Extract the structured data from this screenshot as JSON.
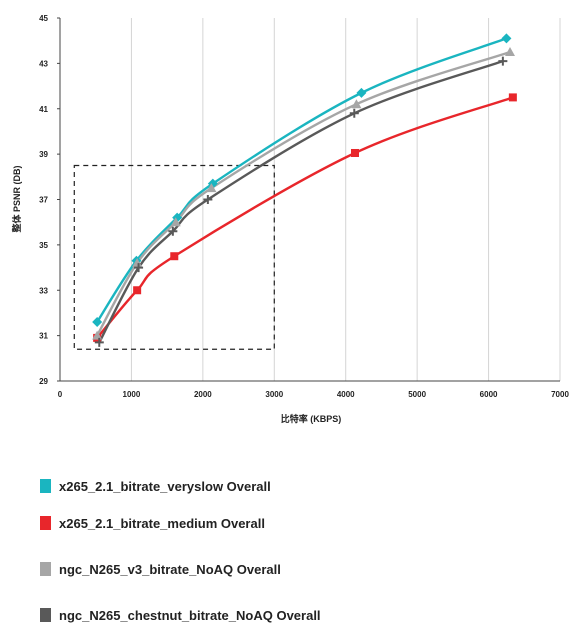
{
  "chart_data": {
    "type": "line",
    "title": "",
    "xlabel": "比特率 (KBPS)",
    "ylabel": "整体 PSNR (DB)",
    "xlim": [
      0,
      7000
    ],
    "ylim": [
      29,
      45
    ],
    "x_ticks": [
      "0",
      "1000",
      "2000",
      "3000",
      "4000",
      "5000",
      "6000",
      "7000"
    ],
    "y_ticks": [
      "29",
      "31",
      "33",
      "35",
      "37",
      "39",
      "41",
      "43",
      "45"
    ],
    "grid": "vertical",
    "legend_position": "bottom",
    "zoom_box": {
      "x": [
        200,
        3000
      ],
      "y": [
        30.4,
        38.5
      ]
    },
    "series": [
      {
        "name": "x265_2.1_bitrate_veryslow Overall",
        "color": "#1ab5c0",
        "marker": "diamond",
        "points": [
          [
            520,
            31.6
          ],
          [
            1070,
            34.3
          ],
          [
            1640,
            36.2
          ],
          [
            2140,
            37.7
          ],
          [
            4220,
            41.7
          ],
          [
            6250,
            44.1
          ]
        ]
      },
      {
        "name": "x265_2.1_bitrate_medium Overall",
        "color": "#e8262b",
        "marker": "square",
        "points": [
          [
            520,
            30.9
          ],
          [
            1080,
            33.0
          ],
          [
            1600,
            34.5
          ],
          [
            4130,
            39.05
          ],
          [
            6340,
            41.5
          ]
        ]
      },
      {
        "name": "ngc_N265_v3_bitrate_NoAQ Overall",
        "color": "#a6a6a6",
        "marker": "triangle",
        "points": [
          [
            520,
            31.0
          ],
          [
            1080,
            34.2
          ],
          [
            1620,
            36.0
          ],
          [
            2120,
            37.5
          ],
          [
            4150,
            41.2
          ],
          [
            6300,
            43.5
          ]
        ]
      },
      {
        "name": "ngc_N265_chestnut_bitrate_NoAQ Overall",
        "color": "#595959",
        "marker": "plus",
        "points": [
          [
            550,
            30.7
          ],
          [
            1100,
            34.0
          ],
          [
            1580,
            35.6
          ],
          [
            2070,
            37.0
          ],
          [
            4120,
            40.8
          ],
          [
            6200,
            43.1
          ]
        ]
      }
    ]
  }
}
